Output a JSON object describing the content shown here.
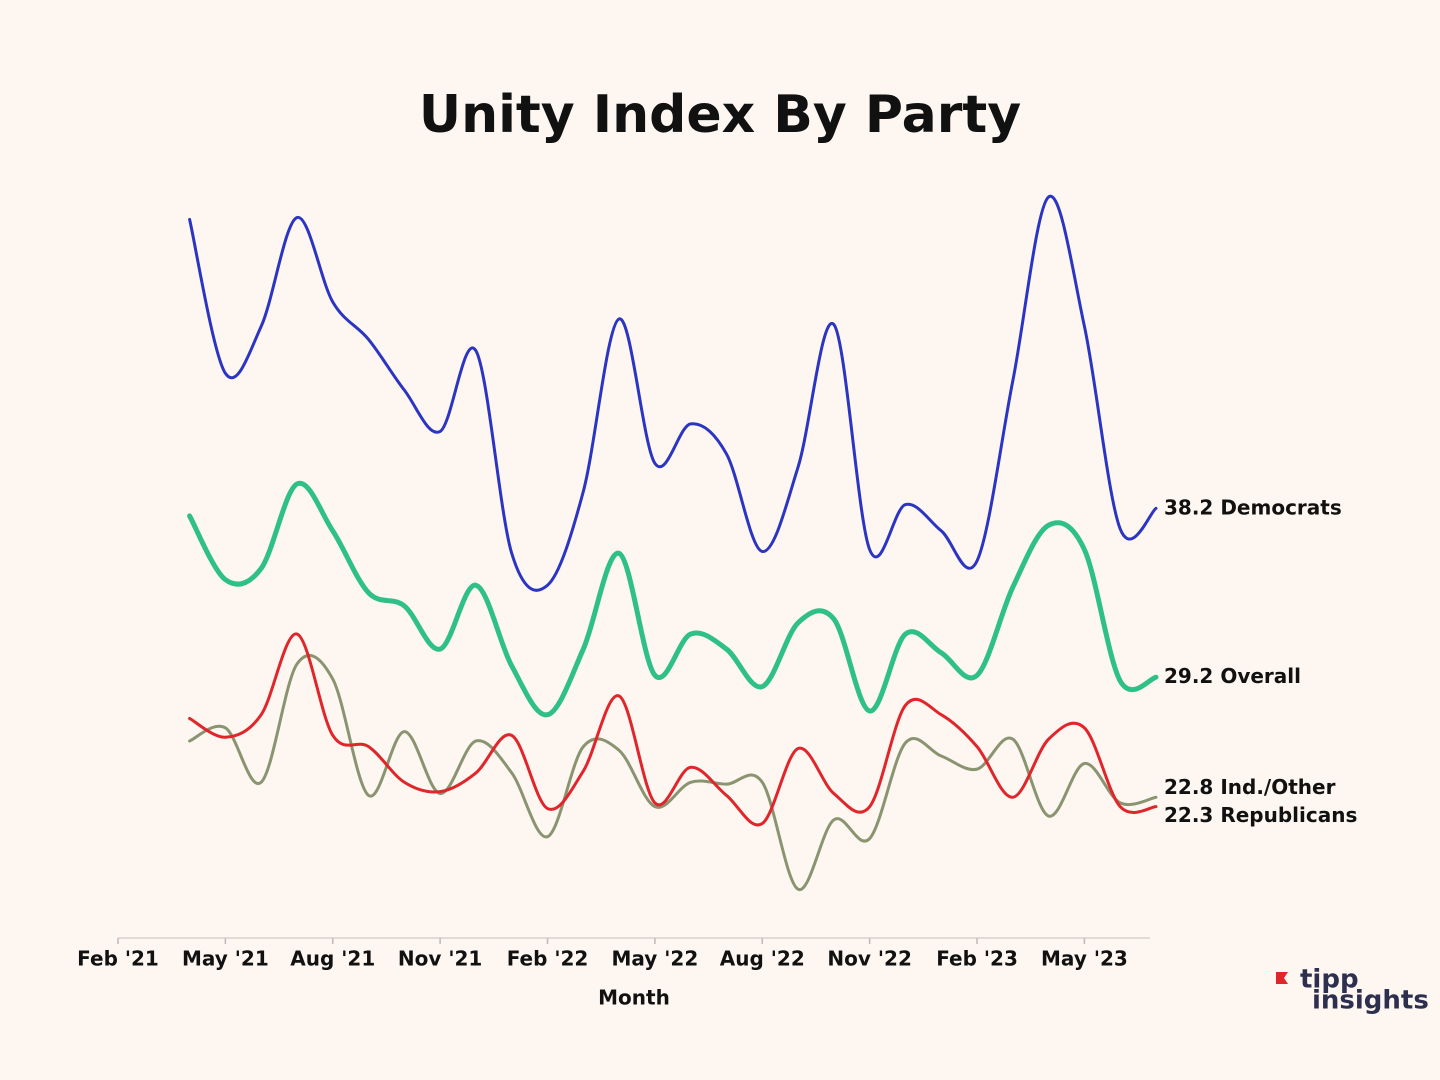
{
  "chart_data": {
    "type": "line",
    "title": "Unity Index By Party",
    "x_label": "Month",
    "x": [
      "2021-04",
      "2021-05",
      "2021-06",
      "2021-07",
      "2021-08",
      "2021-09",
      "2021-10",
      "2021-11",
      "2021-12",
      "2022-01",
      "2022-02",
      "2022-03",
      "2022-04",
      "2022-05",
      "2022-06",
      "2022-07",
      "2022-08",
      "2022-09",
      "2022-10",
      "2022-11",
      "2022-12",
      "2023-01",
      "2023-02",
      "2023-03",
      "2023-04",
      "2023-05",
      "2023-06",
      "2023-07"
    ],
    "xlim": [
      "2021-02",
      "2023-07"
    ],
    "xticks": [
      {
        "value": "2021-02",
        "label": "Feb '21"
      },
      {
        "value": "2021-05",
        "label": "May '21"
      },
      {
        "value": "2021-08",
        "label": "Aug '21"
      },
      {
        "value": "2021-11",
        "label": "Nov '21"
      },
      {
        "value": "2022-02",
        "label": "Feb '22"
      },
      {
        "value": "2022-05",
        "label": "May '22"
      },
      {
        "value": "2022-08",
        "label": "Aug '22"
      },
      {
        "value": "2022-11",
        "label": "Nov '22"
      },
      {
        "value": "2023-02",
        "label": "Feb '23"
      },
      {
        "value": "2023-05",
        "label": "May '23"
      }
    ],
    "ylim": [
      15.3,
      55.7
    ],
    "series": [
      {
        "name": "Democrats",
        "color": "#2b35c2",
        "values": [
          53.6,
          45.4,
          47.9,
          53.7,
          49.2,
          47.2,
          44.5,
          42.3,
          46.6,
          35.8,
          34.1,
          39.1,
          48.3,
          40.6,
          42.7,
          41.1,
          35.9,
          40.4,
          48.0,
          36.0,
          38.4,
          37.0,
          35.4,
          45.0,
          54.8,
          47.9,
          37.1,
          38.2
        ]
      },
      {
        "name": "Overall",
        "color": "#2ec086",
        "values": [
          37.8,
          34.4,
          35.0,
          39.5,
          37.0,
          33.7,
          33.0,
          30.7,
          34.1,
          29.8,
          27.2,
          30.7,
          35.8,
          29.3,
          31.5,
          30.7,
          28.7,
          32.1,
          32.3,
          27.4,
          31.5,
          30.5,
          29.3,
          34.0,
          37.3,
          36.0,
          29.0,
          29.2
        ]
      },
      {
        "name": "Ind./Other",
        "color": "#8a9470",
        "values": [
          25.8,
          26.5,
          23.6,
          29.9,
          29.1,
          22.9,
          26.3,
          23.0,
          25.8,
          24.1,
          20.7,
          25.5,
          25.3,
          22.3,
          23.6,
          23.5,
          23.6,
          17.9,
          21.6,
          20.6,
          25.7,
          25.0,
          24.3,
          25.9,
          21.8,
          24.6,
          22.5,
          22.8
        ]
      },
      {
        "name": "Republicans",
        "color": "#e0262a",
        "values": [
          27.0,
          26.0,
          27.2,
          31.5,
          26.1,
          25.5,
          23.6,
          23.1,
          24.1,
          26.1,
          22.2,
          24.2,
          28.2,
          22.5,
          24.4,
          22.9,
          21.4,
          25.4,
          23.0,
          22.3,
          27.7,
          27.2,
          25.5,
          22.8,
          25.9,
          26.5,
          22.3,
          22.3
        ]
      }
    ]
  },
  "branding": {
    "line1": "tipp",
    "line2": "insights"
  }
}
